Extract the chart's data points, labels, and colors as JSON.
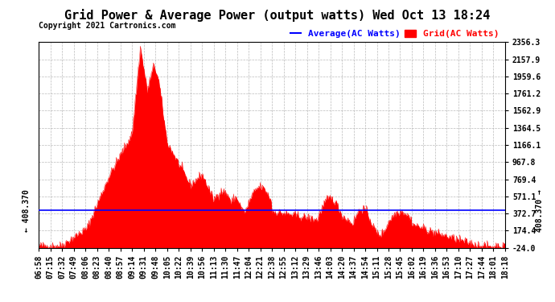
{
  "title": "Grid Power & Average Power (output watts) Wed Oct 13 18:24",
  "copyright": "Copyright 2021 Cartronics.com",
  "legend_avg": "Average(AC Watts)",
  "legend_grid": "Grid(AC Watts)",
  "avg_value": 408.37,
  "y_ticks": [
    -24.0,
    174.4,
    372.7,
    571.1,
    769.4,
    967.8,
    1166.1,
    1364.5,
    1562.9,
    1761.2,
    1959.6,
    2157.9,
    2356.3
  ],
  "ylim": [
    -24.0,
    2356.3
  ],
  "x_tick_labels": [
    "06:58",
    "07:15",
    "07:32",
    "07:49",
    "08:06",
    "08:23",
    "08:40",
    "08:57",
    "09:14",
    "09:31",
    "09:48",
    "10:05",
    "10:22",
    "10:39",
    "10:56",
    "11:13",
    "11:30",
    "11:47",
    "12:04",
    "12:21",
    "12:38",
    "12:55",
    "13:12",
    "13:29",
    "13:46",
    "14:03",
    "14:20",
    "14:37",
    "14:54",
    "15:11",
    "15:28",
    "15:45",
    "16:02",
    "16:19",
    "16:36",
    "16:53",
    "17:10",
    "17:27",
    "17:44",
    "18:01",
    "18:18"
  ],
  "background_color": "#ffffff",
  "grid_color": "#aaaaaa",
  "fill_color": "#ff0000",
  "line_color": "#ff0000",
  "avg_line_color": "#0000ff",
  "title_fontsize": 11,
  "axis_fontsize": 7,
  "legend_fontsize": 8,
  "copyright_fontsize": 7
}
